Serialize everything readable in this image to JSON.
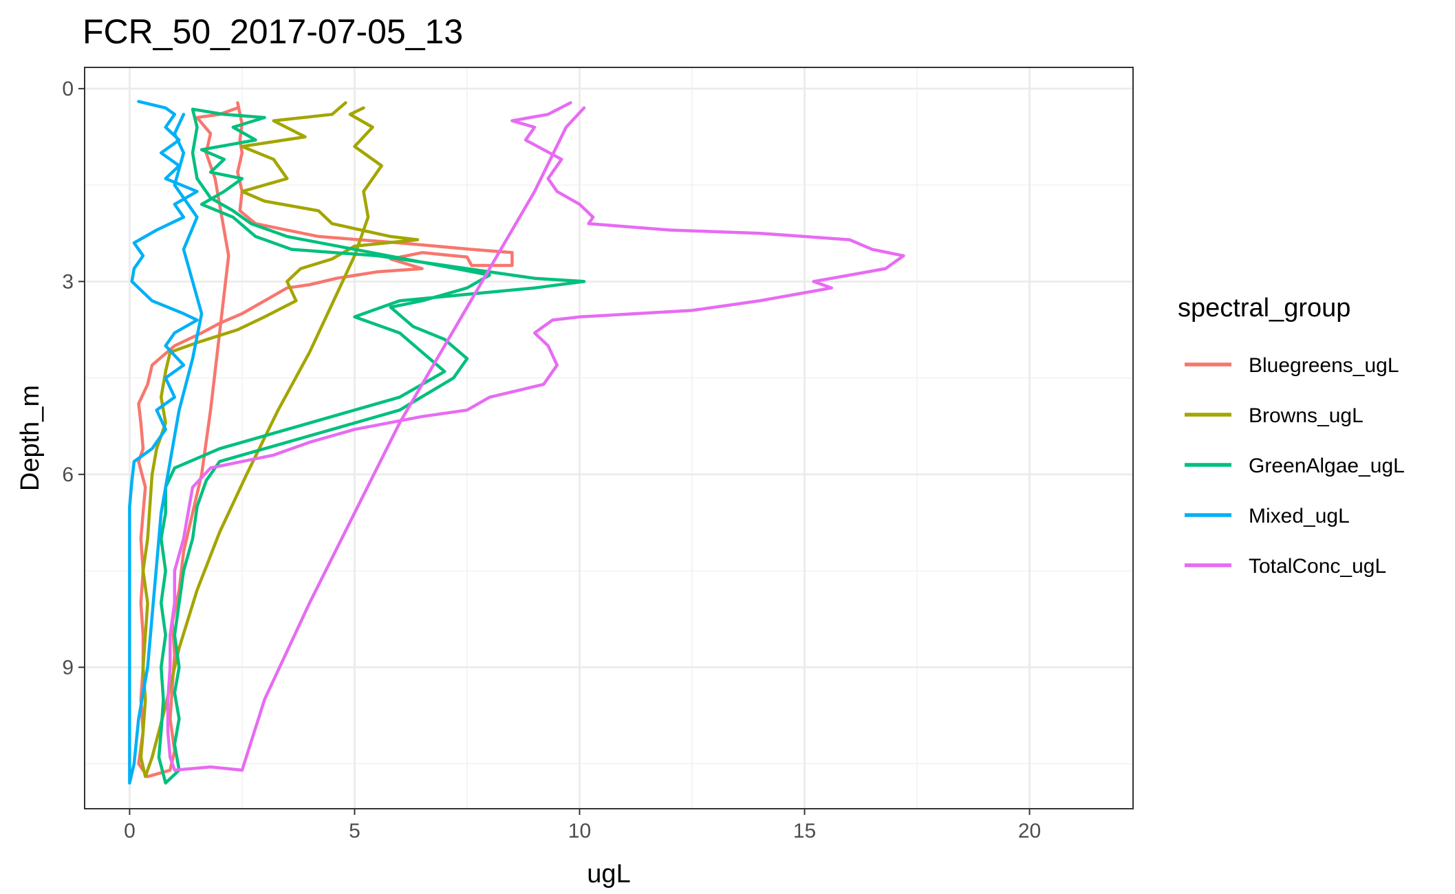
{
  "chart_data": {
    "type": "line",
    "title": "FCR_50_2017-07-05_13",
    "xlabel": "ugL",
    "ylabel": "Depth_m",
    "xlim": [
      -1,
      22.3
    ],
    "ylim": [
      11.2,
      -0.33
    ],
    "y_reversed": true,
    "grid": true,
    "x_ticks": [
      0,
      5,
      10,
      15,
      20
    ],
    "y_ticks": [
      0,
      3,
      6,
      9
    ],
    "legend_title": "spectral_group",
    "legend_position": "right",
    "series": [
      {
        "name": "Bluegreens_ugL",
        "color": "#F8766D",
        "points": [
          [
            2.4,
            0.22
          ],
          [
            2.5,
            0.55
          ],
          [
            2.45,
            0.8
          ],
          [
            2.5,
            1.0
          ],
          [
            2.4,
            1.3
          ],
          [
            2.5,
            1.6
          ],
          [
            2.45,
            1.9
          ],
          [
            2.8,
            2.1
          ],
          [
            4.2,
            2.3
          ],
          [
            6.0,
            2.4
          ],
          [
            7.6,
            2.5
          ],
          [
            8.5,
            2.55
          ],
          [
            8.5,
            2.75
          ],
          [
            7.6,
            2.75
          ],
          [
            7.5,
            2.62
          ],
          [
            6.5,
            2.55
          ],
          [
            5.8,
            2.65
          ],
          [
            6.5,
            2.8
          ],
          [
            5.5,
            2.85
          ],
          [
            4.6,
            2.95
          ],
          [
            4.0,
            3.05
          ],
          [
            3.5,
            3.1
          ],
          [
            3.0,
            3.3
          ],
          [
            2.5,
            3.5
          ],
          [
            2.0,
            3.65
          ],
          [
            1.6,
            3.8
          ],
          [
            1.0,
            4.0
          ],
          [
            0.5,
            4.3
          ],
          [
            0.4,
            4.6
          ],
          [
            0.2,
            4.9
          ],
          [
            0.25,
            5.2
          ],
          [
            0.3,
            5.6
          ],
          [
            0.2,
            5.8
          ],
          [
            0.35,
            6.2
          ],
          [
            0.3,
            6.6
          ],
          [
            0.25,
            7.0
          ],
          [
            0.3,
            7.5
          ],
          [
            0.25,
            8.0
          ],
          [
            0.3,
            8.5
          ],
          [
            0.3,
            9.0
          ],
          [
            0.25,
            9.5
          ],
          [
            0.3,
            10.0
          ],
          [
            0.2,
            10.5
          ],
          [
            0.4,
            10.7
          ],
          [
            0.9,
            10.6
          ],
          [
            1.0,
            10.3
          ],
          [
            0.9,
            9.8
          ],
          [
            0.95,
            9.3
          ],
          [
            1.0,
            8.8
          ],
          [
            0.95,
            8.3
          ],
          [
            1.1,
            7.8
          ],
          [
            1.2,
            7.2
          ],
          [
            1.4,
            6.6
          ],
          [
            1.6,
            6.0
          ],
          [
            1.8,
            5.0
          ],
          [
            2.0,
            3.8
          ],
          [
            2.2,
            2.6
          ],
          [
            2.0,
            1.8
          ],
          [
            1.9,
            1.4
          ],
          [
            1.7,
            1.0
          ],
          [
            1.8,
            0.7
          ],
          [
            1.5,
            0.45
          ],
          [
            2.0,
            0.4
          ],
          [
            2.4,
            0.3
          ]
        ]
      },
      {
        "name": "Browns_ugL",
        "color": "#A3A500",
        "points": [
          [
            4.8,
            0.22
          ],
          [
            4.5,
            0.4
          ],
          [
            3.2,
            0.5
          ],
          [
            3.9,
            0.75
          ],
          [
            2.5,
            0.9
          ],
          [
            3.2,
            1.1
          ],
          [
            3.5,
            1.4
          ],
          [
            2.5,
            1.6
          ],
          [
            3.0,
            1.75
          ],
          [
            4.2,
            1.9
          ],
          [
            4.5,
            2.1
          ],
          [
            5.8,
            2.3
          ],
          [
            6.4,
            2.35
          ],
          [
            5.0,
            2.45
          ],
          [
            4.5,
            2.65
          ],
          [
            3.8,
            2.8
          ],
          [
            3.5,
            3.0
          ],
          [
            3.7,
            3.3
          ],
          [
            3.0,
            3.55
          ],
          [
            2.4,
            3.75
          ],
          [
            1.5,
            3.95
          ],
          [
            0.9,
            4.1
          ],
          [
            0.8,
            4.4
          ],
          [
            0.7,
            4.8
          ],
          [
            0.8,
            5.2
          ],
          [
            0.6,
            5.6
          ],
          [
            0.5,
            6.0
          ],
          [
            0.45,
            6.5
          ],
          [
            0.4,
            7.0
          ],
          [
            0.3,
            7.5
          ],
          [
            0.4,
            8.0
          ],
          [
            0.35,
            8.5
          ],
          [
            0.3,
            9.0
          ],
          [
            0.35,
            9.5
          ],
          [
            0.3,
            10.0
          ],
          [
            0.25,
            10.4
          ],
          [
            0.35,
            10.7
          ],
          [
            0.5,
            10.4
          ],
          [
            0.8,
            9.6
          ],
          [
            1.1,
            8.7
          ],
          [
            1.5,
            7.8
          ],
          [
            2.0,
            6.9
          ],
          [
            2.6,
            6.0
          ],
          [
            3.3,
            5.0
          ],
          [
            4.0,
            4.1
          ],
          [
            4.6,
            3.2
          ],
          [
            5.0,
            2.6
          ],
          [
            5.3,
            2.0
          ],
          [
            5.2,
            1.6
          ],
          [
            5.6,
            1.2
          ],
          [
            5.0,
            0.9
          ],
          [
            5.4,
            0.6
          ],
          [
            4.9,
            0.4
          ],
          [
            5.2,
            0.3
          ]
        ]
      },
      {
        "name": "GreenAlgae_ugL",
        "color": "#00BF7D",
        "points": [
          [
            1.4,
            0.32
          ],
          [
            2.1,
            0.4
          ],
          [
            3.0,
            0.45
          ],
          [
            2.3,
            0.6
          ],
          [
            2.8,
            0.8
          ],
          [
            1.6,
            0.95
          ],
          [
            2.1,
            1.1
          ],
          [
            1.8,
            1.3
          ],
          [
            2.5,
            1.4
          ],
          [
            2.1,
            1.6
          ],
          [
            1.6,
            1.8
          ],
          [
            2.3,
            2.0
          ],
          [
            2.8,
            2.3
          ],
          [
            3.6,
            2.5
          ],
          [
            5.5,
            2.6
          ],
          [
            7.5,
            2.8
          ],
          [
            9.0,
            2.95
          ],
          [
            10.1,
            3.0
          ],
          [
            9.0,
            3.1
          ],
          [
            7.5,
            3.2
          ],
          [
            6.0,
            3.3
          ],
          [
            5.0,
            3.55
          ],
          [
            6.0,
            3.8
          ],
          [
            6.5,
            4.1
          ],
          [
            7.0,
            4.4
          ],
          [
            6.0,
            4.8
          ],
          [
            5.0,
            5.0
          ],
          [
            3.5,
            5.3
          ],
          [
            2.0,
            5.6
          ],
          [
            1.0,
            5.9
          ],
          [
            0.8,
            6.2
          ],
          [
            0.8,
            6.6
          ],
          [
            0.7,
            7.0
          ],
          [
            0.8,
            7.5
          ],
          [
            0.7,
            8.0
          ],
          [
            0.8,
            8.5
          ],
          [
            0.7,
            9.0
          ],
          [
            0.75,
            9.5
          ],
          [
            0.7,
            10.0
          ],
          [
            0.65,
            10.4
          ],
          [
            0.8,
            10.8
          ],
          [
            1.1,
            10.6
          ],
          [
            1.0,
            10.2
          ],
          [
            1.1,
            9.8
          ],
          [
            1.0,
            9.4
          ],
          [
            1.1,
            9.0
          ],
          [
            1.0,
            8.5
          ],
          [
            1.1,
            8.0
          ],
          [
            1.2,
            7.5
          ],
          [
            1.4,
            7.0
          ],
          [
            1.5,
            6.5
          ],
          [
            1.7,
            6.1
          ],
          [
            2.0,
            5.8
          ],
          [
            3.0,
            5.6
          ],
          [
            4.5,
            5.3
          ],
          [
            6.0,
            5.0
          ],
          [
            7.2,
            4.5
          ],
          [
            7.5,
            4.2
          ],
          [
            7.0,
            3.9
          ],
          [
            6.3,
            3.7
          ],
          [
            5.8,
            3.4
          ],
          [
            6.5,
            3.3
          ],
          [
            7.5,
            3.1
          ],
          [
            8.0,
            2.9
          ],
          [
            6.5,
            2.7
          ],
          [
            5.0,
            2.5
          ],
          [
            3.5,
            2.3
          ],
          [
            2.7,
            2.1
          ],
          [
            2.3,
            1.9
          ],
          [
            1.8,
            1.7
          ],
          [
            1.5,
            1.4
          ],
          [
            1.4,
            1.0
          ],
          [
            1.5,
            0.6
          ],
          [
            1.4,
            0.32
          ]
        ]
      },
      {
        "name": "Mixed_ugL",
        "color": "#00B0F6",
        "points": [
          [
            0.2,
            0.2
          ],
          [
            0.8,
            0.3
          ],
          [
            1.0,
            0.4
          ],
          [
            0.8,
            0.6
          ],
          [
            1.1,
            0.8
          ],
          [
            0.7,
            1.0
          ],
          [
            1.1,
            1.2
          ],
          [
            0.8,
            1.4
          ],
          [
            1.5,
            1.6
          ],
          [
            1.0,
            1.8
          ],
          [
            1.2,
            2.0
          ],
          [
            0.6,
            2.2
          ],
          [
            0.1,
            2.4
          ],
          [
            0.3,
            2.6
          ],
          [
            0.1,
            2.8
          ],
          [
            0.05,
            3.0
          ],
          [
            0.2,
            3.1
          ],
          [
            0.5,
            3.3
          ],
          [
            1.2,
            3.5
          ],
          [
            1.5,
            3.6
          ],
          [
            1.0,
            3.8
          ],
          [
            0.8,
            4.0
          ],
          [
            1.2,
            4.3
          ],
          [
            0.8,
            4.5
          ],
          [
            1.0,
            4.8
          ],
          [
            0.6,
            5.0
          ],
          [
            0.8,
            5.3
          ],
          [
            0.5,
            5.6
          ],
          [
            0.1,
            5.8
          ],
          [
            0.05,
            6.1
          ],
          [
            0.0,
            6.5
          ],
          [
            0.0,
            7.0
          ],
          [
            0.0,
            7.5
          ],
          [
            0.0,
            8.0
          ],
          [
            0.0,
            8.5
          ],
          [
            0.0,
            9.0
          ],
          [
            0.0,
            9.5
          ],
          [
            0.0,
            10.0
          ],
          [
            0.0,
            10.4
          ],
          [
            0.0,
            10.8
          ],
          [
            0.1,
            10.5
          ],
          [
            0.2,
            9.8
          ],
          [
            0.4,
            9.0
          ],
          [
            0.5,
            8.2
          ],
          [
            0.6,
            7.4
          ],
          [
            0.7,
            6.6
          ],
          [
            0.9,
            5.8
          ],
          [
            1.1,
            5.0
          ],
          [
            1.4,
            4.2
          ],
          [
            1.6,
            3.5
          ],
          [
            1.4,
            3.0
          ],
          [
            1.2,
            2.5
          ],
          [
            1.5,
            2.0
          ],
          [
            1.0,
            1.5
          ],
          [
            1.2,
            1.0
          ],
          [
            1.0,
            0.7
          ],
          [
            1.2,
            0.4
          ]
        ]
      },
      {
        "name": "TotalConc_ugL",
        "color": "#E76BF3",
        "points": [
          [
            9.8,
            0.22
          ],
          [
            9.3,
            0.4
          ],
          [
            8.5,
            0.5
          ],
          [
            9.0,
            0.6
          ],
          [
            8.8,
            0.8
          ],
          [
            9.6,
            1.1
          ],
          [
            9.3,
            1.4
          ],
          [
            9.5,
            1.6
          ],
          [
            10.0,
            1.8
          ],
          [
            10.3,
            2.0
          ],
          [
            10.2,
            2.1
          ],
          [
            12.0,
            2.2
          ],
          [
            14.0,
            2.25
          ],
          [
            16.0,
            2.35
          ],
          [
            16.5,
            2.5
          ],
          [
            17.2,
            2.6
          ],
          [
            16.8,
            2.8
          ],
          [
            15.6,
            2.95
          ],
          [
            15.2,
            3.0
          ],
          [
            15.6,
            3.1
          ],
          [
            14.0,
            3.3
          ],
          [
            12.5,
            3.45
          ],
          [
            10.0,
            3.55
          ],
          [
            9.4,
            3.6
          ],
          [
            9.0,
            3.8
          ],
          [
            9.3,
            4.0
          ],
          [
            9.5,
            4.3
          ],
          [
            9.2,
            4.6
          ],
          [
            8.0,
            4.8
          ],
          [
            7.5,
            5.0
          ],
          [
            6.5,
            5.1
          ],
          [
            5.0,
            5.3
          ],
          [
            4.0,
            5.5
          ],
          [
            3.2,
            5.7
          ],
          [
            2.5,
            5.8
          ],
          [
            1.8,
            5.9
          ],
          [
            1.4,
            6.2
          ],
          [
            1.3,
            6.6
          ],
          [
            1.2,
            7.0
          ],
          [
            1.0,
            7.5
          ],
          [
            1.0,
            8.0
          ],
          [
            0.9,
            8.5
          ],
          [
            0.9,
            9.0
          ],
          [
            0.85,
            9.5
          ],
          [
            0.85,
            10.0
          ],
          [
            0.9,
            10.4
          ],
          [
            1.0,
            10.6
          ],
          [
            1.8,
            10.55
          ],
          [
            2.5,
            10.6
          ],
          [
            3.0,
            9.5
          ],
          [
            4.0,
            8.0
          ],
          [
            5.0,
            6.6
          ],
          [
            6.0,
            5.2
          ],
          [
            7.0,
            4.0
          ],
          [
            8.0,
            2.8
          ],
          [
            9.0,
            1.6
          ],
          [
            9.7,
            0.6
          ],
          [
            10.1,
            0.3
          ]
        ]
      }
    ]
  }
}
